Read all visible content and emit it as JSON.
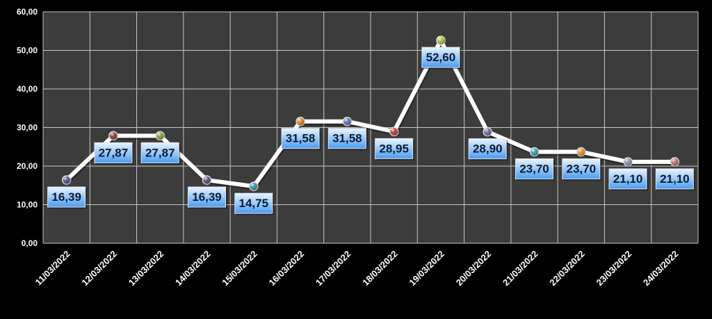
{
  "chart_data": {
    "type": "line",
    "categories": [
      "11/03/2022",
      "12/03/2022",
      "13/03/2022",
      "14/03/2022",
      "15/03/2022",
      "16/03/2022",
      "17/03/2022",
      "18/03/2022",
      "19/03/2022",
      "20/03/2022",
      "21/03/2022",
      "22/03/2022",
      "23/03/2022",
      "24/03/2022"
    ],
    "values": [
      16.39,
      27.87,
      27.87,
      16.39,
      14.75,
      31.58,
      31.58,
      28.95,
      52.6,
      28.9,
      23.7,
      23.7,
      21.1,
      21.1
    ],
    "value_labels": [
      "16,39",
      "27,87",
      "27,87",
      "16,39",
      "14,75",
      "31,58",
      "31,58",
      "28,95",
      "52,60",
      "28,90",
      "23,70",
      "23,70",
      "21,10",
      "21,10"
    ],
    "yticks": [
      "0,00",
      "10,00",
      "20,00",
      "30,00",
      "40,00",
      "50,00",
      "60,00"
    ],
    "ylim": [
      0,
      60
    ],
    "grid": true,
    "legend": "none",
    "title": "",
    "xlabel": "",
    "ylabel": "",
    "colors": {
      "background": "#000000",
      "plot_area": "#3c3c3c",
      "gridline": "#c8c8c8",
      "line": "#ffffff",
      "label_box_top": "#eaf4ff",
      "label_box_bottom": "#4a9cf2",
      "marker_colors": [
        "#3c4c80",
        "#8a2a2a",
        "#7a9a2a",
        "#5a3c7a",
        "#2a8aa0",
        "#e0781a",
        "#4a6aaa",
        "#b03030",
        "#a0c030",
        "#6a5aa0",
        "#2a9ab0",
        "#e8891a",
        "#7a8aa0",
        "#c06060"
      ]
    }
  }
}
